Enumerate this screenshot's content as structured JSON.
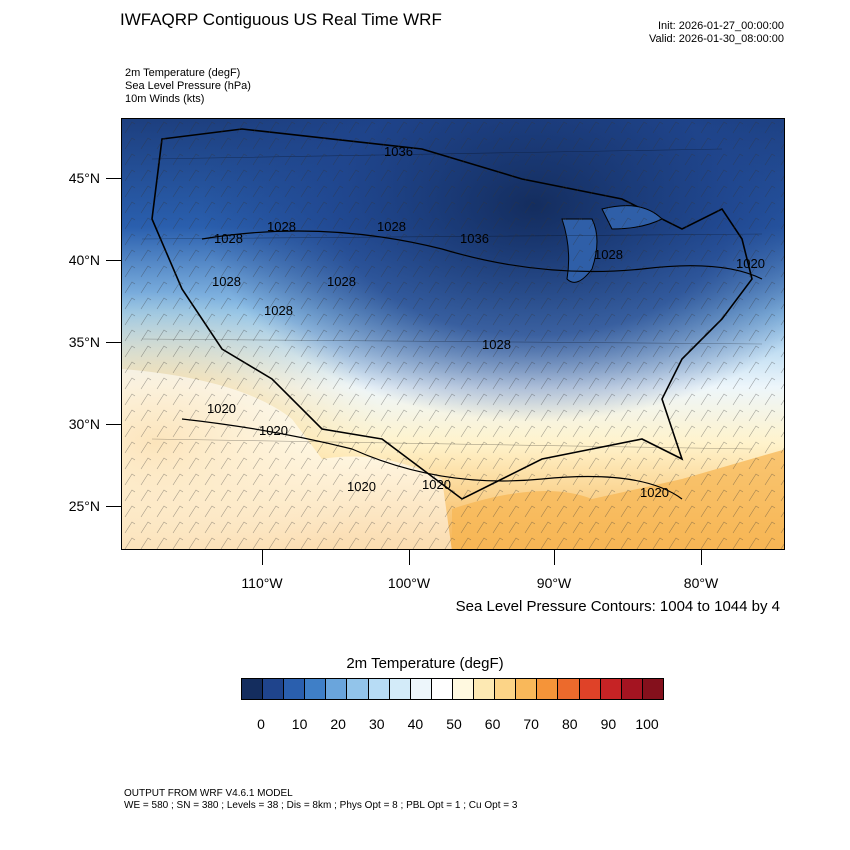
{
  "title": "IWFAQRP Contiguous US Real Time WRF",
  "init": "Init: 2026-01-27_00:00:00",
  "valid": "Valid: 2026-01-30_08:00:00",
  "fields": [
    "2m Temperature   (degF)",
    "Sea Level Pressure   (hPa)",
    "10m Winds   (kts)"
  ],
  "lat_labels": [
    "45°N",
    "40°N",
    "35°N",
    "30°N",
    "25°N"
  ],
  "lon_labels": [
    "110°W",
    "100°W",
    "90°W",
    "80°W"
  ],
  "contour_note": "Sea Level Pressure Contours: 1004 to 1044 by 4",
  "contour_labels": [
    "1036",
    "1028",
    "1028",
    "1028",
    "1036",
    "1028",
    "1020",
    "1028",
    "1028",
    "1028",
    "1028",
    "1020",
    "1020",
    "1020",
    "1020",
    "1020"
  ],
  "colorbar": {
    "title": "2m Temperature  (degF)",
    "labels": [
      "0",
      "10",
      "20",
      "30",
      "40",
      "50",
      "60",
      "70",
      "80",
      "90",
      "100"
    ],
    "colors": [
      "#142d5e",
      "#1f448c",
      "#2a5fae",
      "#3f7fc7",
      "#6aa5dc",
      "#92c4ea",
      "#b7dcf5",
      "#d3ebf9",
      "#edf6fb",
      "#ffffff",
      "#fff9e0",
      "#fde9b3",
      "#fcd487",
      "#f9b85a",
      "#f59439",
      "#ec6a2c",
      "#df4228",
      "#c62325",
      "#a41421",
      "#84101c"
    ]
  },
  "model_line1": "OUTPUT FROM WRF V4.6.1 MODEL",
  "model_line2": "WE = 580 ; SN = 380 ; Levels = 38 ; Dis = 8km ; Phys Opt = 8 ; PBL Opt = 1 ; Cu Opt = 3"
}
